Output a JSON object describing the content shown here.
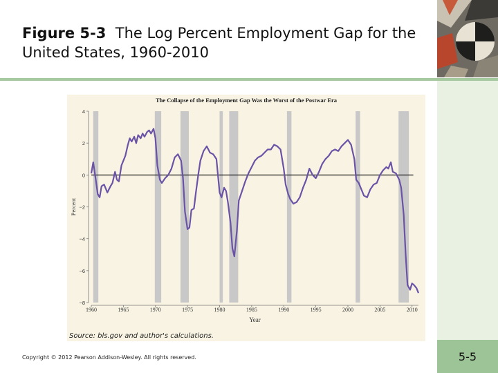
{
  "slide": {
    "figure_label": "Figure 5-3",
    "title_rest": "The Log Percent Employment Gap for the United States, 1960-2010",
    "copyright": "Copyright © 2012 Pearson Addison-Wesley. All rights reserved.",
    "page_number": "5-5",
    "source_note": "Source: bls.gov and author's calculations.",
    "colors": {
      "accent_green": "#9cc497",
      "line": "#6a52a6",
      "recession": "#c8c8c8",
      "panel": "#f8f3e3"
    }
  },
  "chart_data": {
    "type": "line",
    "title": "The Collapse of the Employment Gap Was the Worst of the Postwar Era",
    "xlabel": "Year",
    "ylabel": "Percent",
    "xlim": [
      1960,
      2011
    ],
    "ylim": [
      -8,
      4
    ],
    "x_ticks": [
      1960,
      1965,
      1970,
      1975,
      1980,
      1985,
      1990,
      1995,
      2000,
      2005,
      2010
    ],
    "y_ticks": [
      4,
      2,
      0,
      -2,
      -4,
      -6,
      -8
    ],
    "y_tick_labels": [
      "4",
      "2",
      "0",
      "−2",
      "−4",
      "−6",
      "−8"
    ],
    "zero_line": true,
    "grid": false,
    "recession_bands": [
      [
        1960.3,
        1961.1
      ],
      [
        1969.9,
        1970.9
      ],
      [
        1973.9,
        1975.2
      ],
      [
        1980.0,
        1980.5
      ],
      [
        1981.5,
        1982.9
      ],
      [
        1990.5,
        1991.2
      ],
      [
        2001.2,
        2001.9
      ],
      [
        2007.9,
        2009.5
      ]
    ],
    "series": [
      {
        "x": [
          1960.0,
          1960.3,
          1960.7,
          1961.0,
          1961.3,
          1961.6,
          1962.0,
          1962.5,
          1963.0,
          1963.3,
          1963.7,
          1964.0,
          1964.3,
          1964.7,
          1965.0,
          1965.3,
          1965.7,
          1966.0,
          1966.3,
          1966.7,
          1967.0,
          1967.3,
          1967.7,
          1968.0,
          1968.3,
          1968.7,
          1969.0,
          1969.3,
          1969.7,
          1970.0,
          1970.3,
          1970.7,
          1971.0,
          1971.5,
          1972.0,
          1972.5,
          1973.0,
          1973.5,
          1974.0,
          1974.3,
          1974.6,
          1975.0,
          1975.3,
          1975.6,
          1976.0,
          1976.3,
          1976.7,
          1977.0,
          1977.5,
          1978.0,
          1978.5,
          1979.0,
          1979.5,
          1980.0,
          1980.3,
          1980.7,
          1981.0,
          1981.3,
          1981.7,
          1982.0,
          1982.3,
          1982.7,
          1983.0,
          1983.5,
          1984.0,
          1984.5,
          1985.0,
          1985.5,
          1986.0,
          1986.5,
          1987.0,
          1987.5,
          1988.0,
          1988.5,
          1989.0,
          1989.5,
          1990.0,
          1990.3,
          1990.7,
          1991.0,
          1991.5,
          1992.0,
          1992.5,
          1993.0,
          1993.5,
          1994.0,
          1994.5,
          1995.0,
          1995.5,
          1996.0,
          1996.5,
          1997.0,
          1997.5,
          1998.0,
          1998.5,
          1999.0,
          1999.5,
          2000.0,
          2000.5,
          2001.0,
          2001.3,
          2001.7,
          2002.0,
          2002.5,
          2003.0,
          2003.5,
          2004.0,
          2004.5,
          2005.0,
          2005.5,
          2006.0,
          2006.3,
          2006.7,
          2007.0,
          2007.5,
          2008.0,
          2008.3,
          2008.7,
          2009.0,
          2009.3,
          2009.7,
          2010.0,
          2010.3,
          2010.7,
          2011.0
        ],
        "y": [
          0.1,
          0.8,
          -0.3,
          -1.2,
          -1.4,
          -0.7,
          -0.6,
          -1.1,
          -0.7,
          -0.5,
          0.2,
          -0.3,
          -0.4,
          0.6,
          0.9,
          1.2,
          1.9,
          2.3,
          2.1,
          2.4,
          2.0,
          2.5,
          2.3,
          2.6,
          2.4,
          2.7,
          2.8,
          2.6,
          2.9,
          2.3,
          0.6,
          -0.3,
          -0.5,
          -0.2,
          0.0,
          0.4,
          1.1,
          1.3,
          0.9,
          -0.2,
          -2.3,
          -3.4,
          -3.3,
          -2.2,
          -2.1,
          -1.1,
          0.1,
          0.9,
          1.5,
          1.8,
          1.4,
          1.3,
          1.0,
          -1.1,
          -1.4,
          -0.8,
          -1.0,
          -1.7,
          -3.0,
          -4.6,
          -5.1,
          -3.5,
          -1.6,
          -1.0,
          -0.4,
          0.1,
          0.5,
          0.9,
          1.1,
          1.2,
          1.4,
          1.6,
          1.6,
          1.9,
          1.8,
          1.6,
          0.4,
          -0.6,
          -1.2,
          -1.5,
          -1.8,
          -1.7,
          -1.4,
          -0.8,
          -0.3,
          0.4,
          0.0,
          -0.2,
          0.2,
          0.7,
          1.0,
          1.2,
          1.5,
          1.6,
          1.5,
          1.8,
          2.0,
          2.2,
          1.9,
          1.0,
          -0.3,
          -0.5,
          -0.8,
          -1.3,
          -1.4,
          -0.9,
          -0.6,
          -0.5,
          0.0,
          0.3,
          0.5,
          0.4,
          0.8,
          0.2,
          0.1,
          -0.3,
          -0.8,
          -2.5,
          -5.0,
          -6.9,
          -7.2,
          -6.8,
          -6.9,
          -7.1,
          -7.4
        ]
      }
    ]
  }
}
